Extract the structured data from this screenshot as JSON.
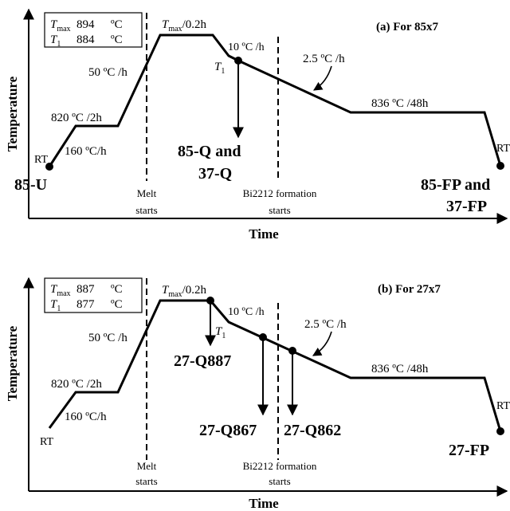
{
  "diagram_a": {
    "y_axis_label": "Temperature",
    "x_axis_label": "Time",
    "title": "(a) For 85x7",
    "legend": {
      "tmax_symbol": "T",
      "tmax_sub": "max",
      "tmax_value": "894",
      "t1_symbol": "T",
      "t1_sub": "1",
      "t1_value": "884",
      "unit": "ºC"
    },
    "rt_left": "RT",
    "rt_right": "RT",
    "ramp_160": "160 ºC/h",
    "hold_820": "820 ºC /2h",
    "ramp_50": "50 ºC /h",
    "hold_tmax_symbol": "T",
    "hold_tmax_sub": "max",
    "hold_tmax_suffix": "/0.2h",
    "ramp_10": "10 ºC /h",
    "t1_symbol": "T",
    "t1_sub": "1",
    "ramp_2_5": "2.5 ºC /h",
    "hold_836": "836 ºC /48h",
    "melt_line1": "Melt",
    "melt_line2": "starts",
    "form_line1": "Bi2212 formation",
    "form_line2": "starts",
    "sample_u": "85-U",
    "sample_q_line1": "85-Q and",
    "sample_q_line2": "37-Q",
    "sample_fp_line1": "85-FP and",
    "sample_fp_line2": "37-FP"
  },
  "diagram_b": {
    "y_axis_label": "Temperature",
    "x_axis_label": "Time",
    "title": "(b) For 27x7",
    "legend": {
      "tmax_symbol": "T",
      "tmax_sub": "max",
      "tmax_value": "887",
      "t1_symbol": "T",
      "t1_sub": "1",
      "t1_value": "877",
      "unit": "ºC"
    },
    "rt_left": "RT",
    "rt_right": "RT",
    "ramp_160": "160 ºC/h",
    "hold_820": "820 ºC /2h",
    "ramp_50": "50 ºC /h",
    "hold_tmax_symbol": "T",
    "hold_tmax_sub": "max",
    "hold_tmax_suffix": "/0.2h",
    "ramp_10": "10 ºC /h",
    "t1_symbol": "T",
    "t1_sub": "1",
    "ramp_2_5": "2.5 ºC /h",
    "hold_836": "836 ºC /48h",
    "melt_line1": "Melt",
    "melt_line2": "starts",
    "form_line1": "Bi2212 formation",
    "form_line2": "starts",
    "sample_q887": "27-Q887",
    "sample_q867": "27-Q867",
    "sample_q862": "27-Q862",
    "sample_fp": "27-FP"
  }
}
